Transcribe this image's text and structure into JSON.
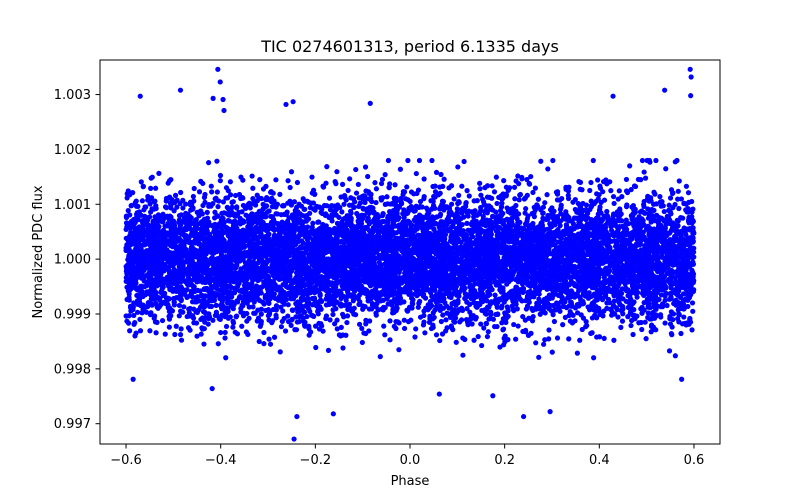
{
  "chart_data": {
    "type": "scatter",
    "title": "TIC 0274601313, period 6.1335 days",
    "xlabel": "Phase",
    "ylabel": "Normalized PDC flux",
    "xlim": [
      -0.655,
      0.655
    ],
    "ylim": [
      0.99663,
      1.00363
    ],
    "xticks": [
      -0.6,
      -0.4,
      -0.2,
      0.0,
      0.2,
      0.4,
      0.6
    ],
    "xtick_labels": [
      "−0.6",
      "−0.4",
      "−0.2",
      "0.0",
      "0.2",
      "0.4",
      "0.6"
    ],
    "yticks": [
      0.997,
      0.998,
      0.999,
      1.0,
      1.001,
      1.002,
      1.003
    ],
    "ytick_labels": [
      "0.997",
      "0.998",
      "0.999",
      "1.000",
      "1.001",
      "1.002",
      "1.003"
    ],
    "grid": false,
    "legend": "none",
    "series": [
      {
        "name": "PDC flux",
        "color": "#0000ff",
        "marker": "circle",
        "n_points": 9000,
        "x_range": [
          -0.6,
          0.6
        ],
        "center": 1.0,
        "sigma": 0.00058,
        "outliers": [
          {
            "x": -0.406,
            "y": 1.00346
          },
          {
            "x": -0.401,
            "y": 1.00323
          },
          {
            "x": -0.395,
            "y": 1.00291
          },
          {
            "x": -0.393,
            "y": 1.00271
          },
          {
            "x": -0.416,
            "y": 1.00293
          },
          {
            "x": -0.485,
            "y": 1.00308
          },
          {
            "x": -0.57,
            "y": 1.00297
          },
          {
            "x": -0.247,
            "y": 1.00287
          },
          {
            "x": -0.262,
            "y": 1.00282
          },
          {
            "x": -0.084,
            "y": 1.00284
          },
          {
            "x": 0.538,
            "y": 1.00308
          },
          {
            "x": 0.592,
            "y": 1.00346
          },
          {
            "x": 0.594,
            "y": 1.00332
          },
          {
            "x": 0.593,
            "y": 1.00298
          },
          {
            "x": 0.429,
            "y": 1.00297
          },
          {
            "x": -0.245,
            "y": 0.99672
          },
          {
            "x": -0.239,
            "y": 0.99713
          },
          {
            "x": -0.162,
            "y": 0.99718
          },
          {
            "x": 0.24,
            "y": 0.99713
          },
          {
            "x": 0.296,
            "y": 0.99722
          },
          {
            "x": -0.418,
            "y": 0.99764
          },
          {
            "x": 0.062,
            "y": 0.99754
          },
          {
            "x": 0.175,
            "y": 0.99751
          },
          {
            "x": 0.574,
            "y": 0.99781
          },
          {
            "x": -0.585,
            "y": 0.99781
          }
        ]
      }
    ]
  }
}
